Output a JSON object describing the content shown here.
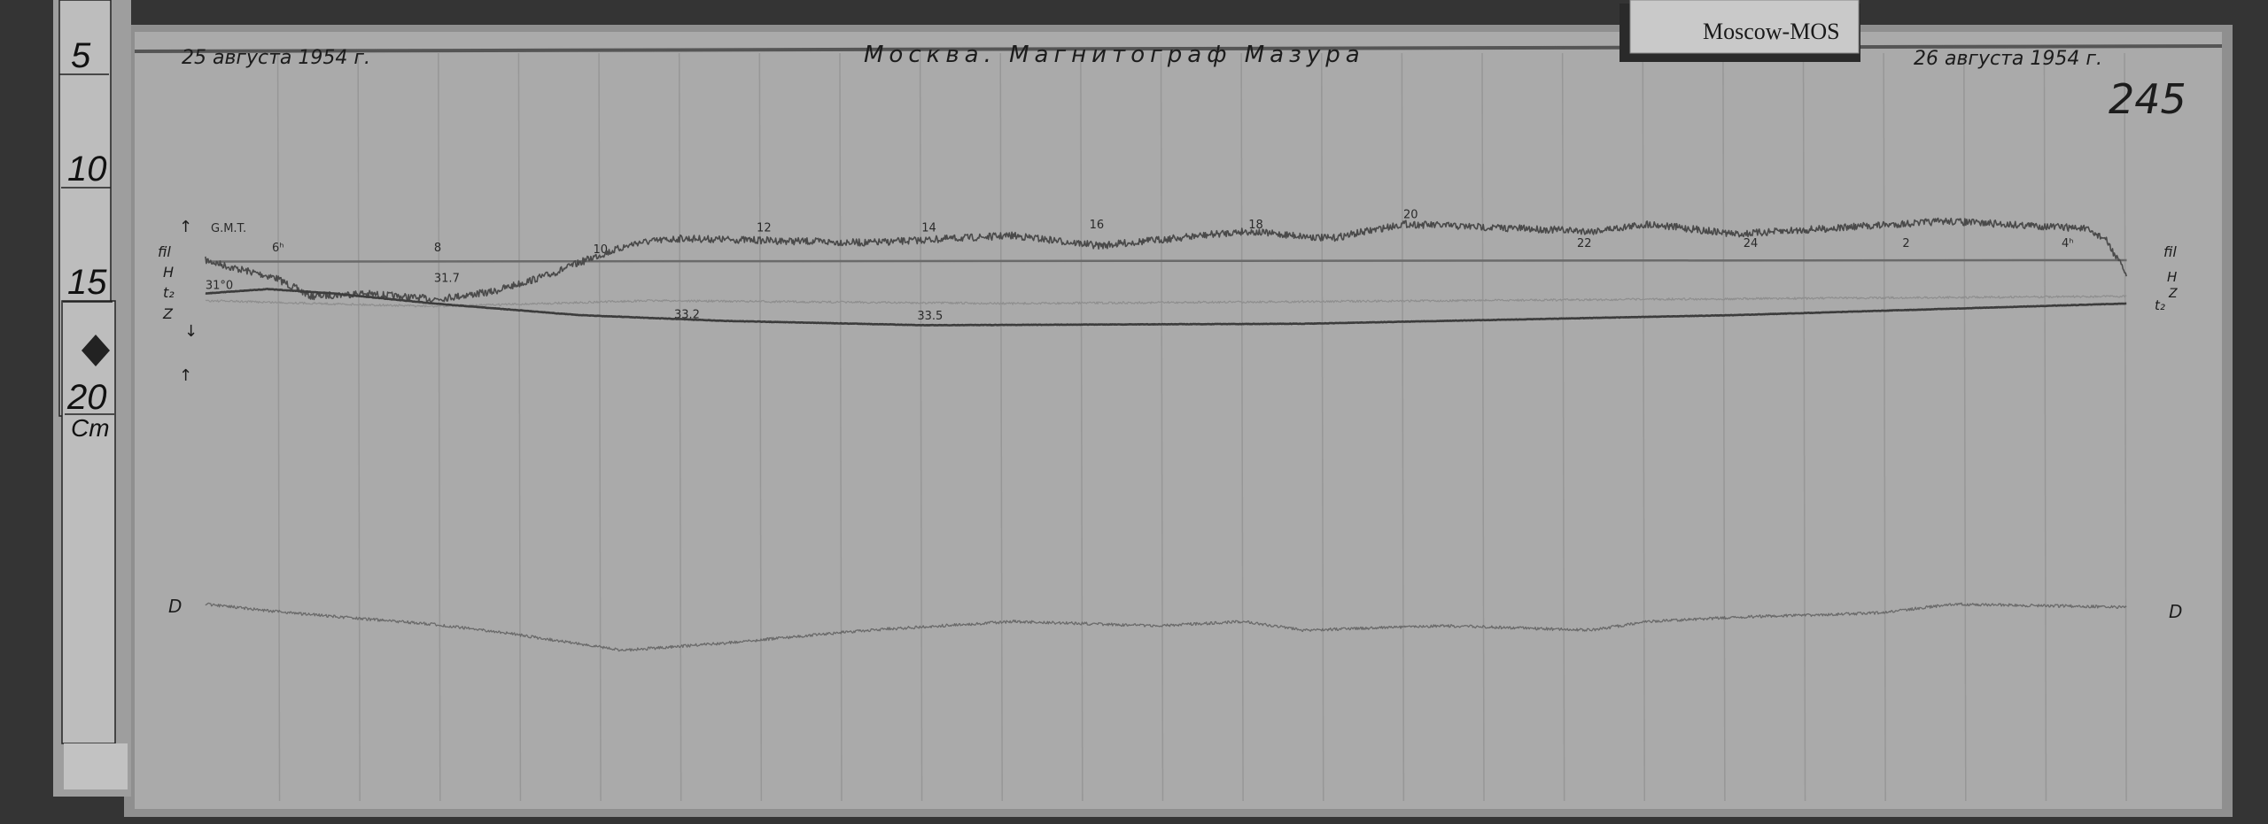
{
  "record": {
    "date_start": "25 августа 1954 г.",
    "date_end": "26 августа 1954 г.",
    "title": "Москва. Магнитограф Мазура",
    "sheet_number": "245",
    "station_card": "Moscow-MOS",
    "time_zone_label": "G.M.T."
  },
  "ruler": {
    "marks": [
      "5",
      "10",
      "15",
      "20"
    ],
    "unit": "Cm"
  },
  "left_labels": [
    "fil",
    "H",
    "t₂",
    "Z"
  ],
  "right_labels": [
    "fil",
    "H",
    "Z",
    "t₂"
  ],
  "hour_labels": [
    "6ʰ",
    "8",
    "10",
    "12",
    "14",
    "16",
    "18",
    "20",
    "22",
    "24",
    "2",
    "4ʰ"
  ],
  "temperature_labels": [
    "31°0",
    "31.7",
    "33.2",
    "33.5"
  ],
  "d_label_left": "D",
  "d_label_right": "D",
  "colors": {
    "paper": "#a9a9a9",
    "ink": "#2a2a2a",
    "background": "#333333"
  }
}
